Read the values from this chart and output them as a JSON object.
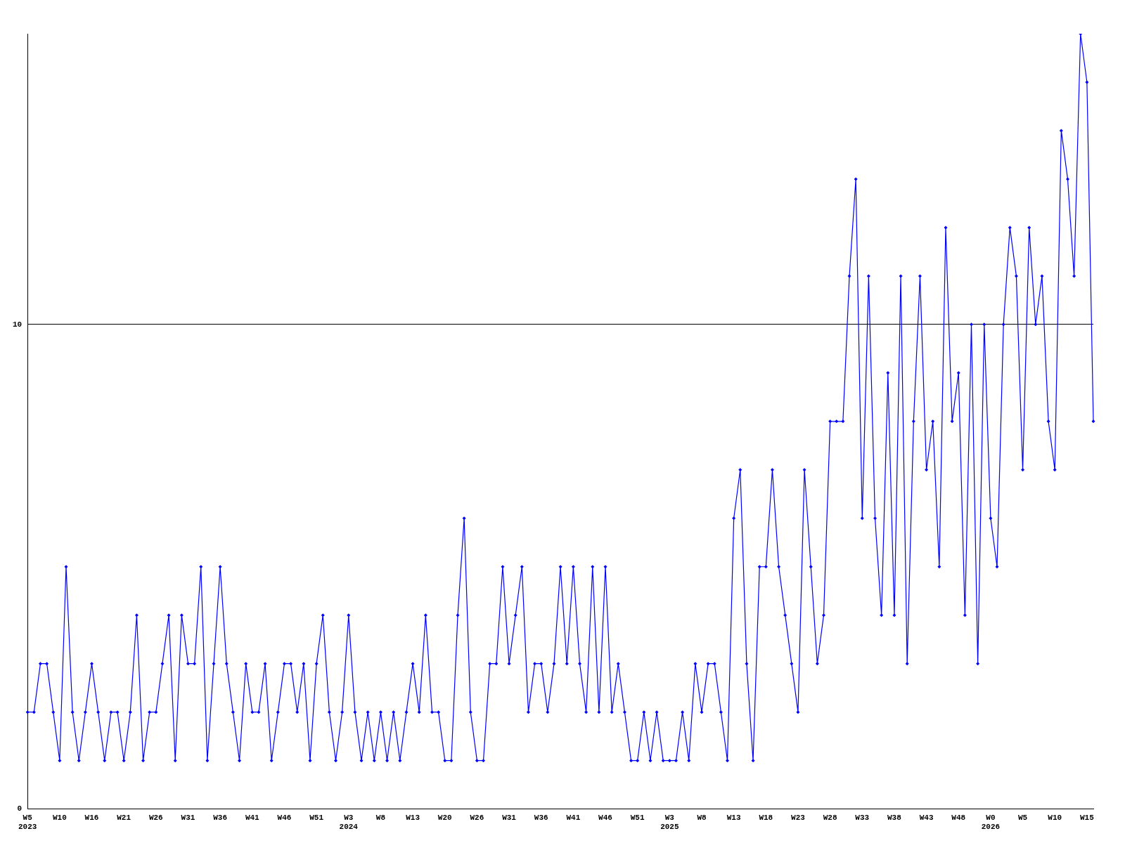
{
  "chart_data": {
    "type": "line",
    "categories": [
      "W5\n2023",
      null,
      null,
      null,
      null,
      "W10",
      null,
      null,
      null,
      null,
      "W16",
      null,
      null,
      null,
      null,
      "W21",
      null,
      null,
      null,
      null,
      "W26",
      null,
      null,
      null,
      null,
      "W31",
      null,
      null,
      null,
      null,
      "W36",
      null,
      null,
      null,
      null,
      "W41",
      null,
      null,
      null,
      null,
      "W46",
      null,
      null,
      null,
      null,
      "W51",
      null,
      null,
      null,
      null,
      "W3\n2024",
      null,
      null,
      null,
      null,
      "W8",
      null,
      null,
      null,
      null,
      "W13",
      null,
      null,
      null,
      null,
      "W20",
      null,
      null,
      null,
      null,
      "W26",
      null,
      null,
      null,
      null,
      "W31",
      null,
      null,
      null,
      null,
      "W36",
      null,
      null,
      null,
      null,
      "W41",
      null,
      null,
      null,
      null,
      "W46",
      null,
      null,
      null,
      null,
      "W51",
      null,
      null,
      null,
      null,
      "W3\n2025",
      null,
      null,
      null,
      null,
      "W8",
      null,
      null,
      null,
      null,
      "W13",
      null,
      null,
      null,
      null,
      "W18",
      null,
      null,
      null,
      null,
      "W23",
      null,
      null,
      null,
      null,
      "W28",
      null,
      null,
      null,
      null,
      "W33",
      null,
      null,
      null,
      null,
      "W38",
      null,
      null,
      null,
      null,
      "W43",
      null,
      null,
      null,
      null,
      "W48",
      null,
      null,
      null,
      null,
      "W0\n2026",
      null,
      null,
      null,
      null,
      "W5",
      null,
      null,
      null,
      null,
      "W10",
      null,
      null,
      null,
      null,
      "W15",
      null
    ],
    "series": [
      {
        "color": "#0000ff",
        "values": [
          2,
          2,
          3,
          3,
          2,
          1,
          5,
          2,
          1,
          2,
          3,
          2,
          1,
          2,
          2,
          1,
          2,
          4,
          1,
          2,
          2,
          3,
          4,
          1,
          4,
          3,
          3,
          5,
          1,
          3,
          5,
          3,
          2,
          1,
          3,
          2,
          2,
          3,
          1,
          2,
          3,
          3,
          2,
          3,
          1,
          3,
          4,
          2,
          1,
          2,
          4,
          2,
          1,
          2,
          1,
          2,
          1,
          2,
          1,
          2,
          3,
          2,
          4,
          2,
          2,
          1,
          1,
          4,
          6,
          2,
          1,
          1,
          3,
          3,
          5,
          3,
          4,
          5,
          2,
          3,
          3,
          2,
          3,
          5,
          3,
          5,
          3,
          2,
          5,
          2,
          5,
          2,
          3,
          2,
          1,
          1,
          2,
          1,
          2,
          1,
          1,
          1,
          2,
          1,
          3,
          2,
          3,
          3,
          2,
          1,
          6,
          7,
          3,
          1,
          5,
          5,
          7,
          5,
          4,
          3,
          2,
          7,
          5,
          3,
          4,
          8,
          8,
          8,
          11,
          13,
          6,
          11,
          6,
          4,
          9,
          4,
          11,
          3,
          8,
          11,
          7,
          8,
          5,
          12,
          8,
          9,
          4,
          10,
          3,
          10,
          6,
          5,
          10,
          12,
          11,
          7,
          12,
          10,
          11,
          8,
          7,
          14,
          13,
          11,
          16,
          15,
          8
        ]
      }
    ],
    "ylim": [
      0,
      16
    ],
    "yticks": [
      0,
      10
    ],
    "grid": "y",
    "legend": false,
    "marker": "diamond",
    "line_style": "solid"
  }
}
